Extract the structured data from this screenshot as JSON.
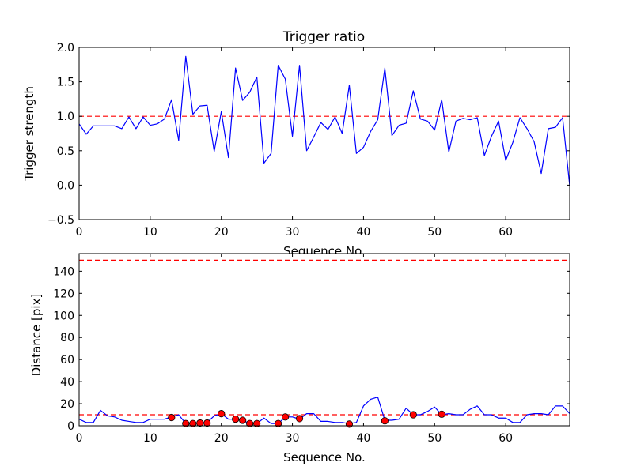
{
  "chart_data": [
    {
      "type": "line",
      "title": "Trigger ratio",
      "xlabel": "Sequence No.",
      "ylabel": "Trigger strength",
      "xlim": [
        0,
        69
      ],
      "ylim": [
        -0.5,
        2.0
      ],
      "xticks": [
        "0",
        "10",
        "20",
        "30",
        "40",
        "50",
        "60"
      ],
      "yticks": [
        "−0.5",
        "0.0",
        "0.5",
        "1.0",
        "1.5",
        "2.0"
      ],
      "grid": false,
      "threshold": 1.0,
      "colors": {
        "line": "#0000ff",
        "threshold": "#ff0000"
      },
      "series": [
        {
          "x": [
            0,
            1,
            2,
            3,
            4,
            5,
            6,
            7,
            8,
            9,
            10,
            11,
            12,
            13,
            14,
            15,
            16,
            17,
            18,
            19,
            20,
            21,
            22,
            23,
            24,
            25,
            26,
            27,
            28,
            29,
            30,
            31,
            32,
            33,
            34,
            35,
            36,
            37,
            38,
            39,
            40,
            41,
            42,
            43,
            44,
            45,
            46,
            47,
            48,
            49,
            50,
            51,
            52,
            53,
            54,
            55,
            56,
            57,
            58,
            59,
            60,
            61,
            62,
            63,
            64,
            65,
            66,
            67,
            68,
            69
          ],
          "values": [
            0.89,
            0.74,
            0.86,
            0.86,
            0.86,
            0.86,
            0.82,
            0.99,
            0.82,
            0.99,
            0.87,
            0.89,
            0.96,
            1.24,
            0.65,
            1.87,
            1.03,
            1.15,
            1.16,
            0.49,
            1.07,
            0.4,
            1.7,
            1.23,
            1.35,
            1.57,
            0.32,
            0.46,
            1.74,
            1.54,
            0.71,
            1.74,
            0.5,
            0.7,
            0.91,
            0.81,
            0.99,
            0.75,
            1.45,
            0.46,
            0.55,
            0.78,
            0.95,
            1.7,
            0.72,
            0.87,
            0.9,
            1.37,
            0.96,
            0.93,
            0.8,
            1.24,
            0.48,
            0.93,
            0.97,
            0.95,
            0.98,
            0.43,
            0.71,
            0.93,
            0.36,
            0.62,
            0.98,
            0.82,
            0.63,
            0.17,
            0.82,
            0.84,
            0.98,
            -0.01
          ]
        }
      ]
    },
    {
      "type": "line",
      "title": "",
      "xlabel": "Sequence No.",
      "ylabel": "Distance [pix]",
      "xlim": [
        0,
        69
      ],
      "ylim": [
        0,
        156
      ],
      "xticks": [
        "0",
        "10",
        "20",
        "30",
        "40",
        "50",
        "60"
      ],
      "yticks": [
        "0",
        "20",
        "40",
        "60",
        "80",
        "100",
        "120",
        "140"
      ],
      "grid": false,
      "thresholds": [
        10,
        150
      ],
      "colors": {
        "line": "#0000ff",
        "threshold": "#ff0000",
        "marker": "#ff0000"
      },
      "series": [
        {
          "x": [
            0,
            1,
            2,
            3,
            4,
            5,
            6,
            7,
            8,
            9,
            10,
            11,
            12,
            13,
            14,
            15,
            16,
            17,
            18,
            19,
            20,
            21,
            22,
            23,
            24,
            25,
            26,
            27,
            28,
            29,
            30,
            31,
            32,
            33,
            34,
            35,
            36,
            37,
            38,
            39,
            40,
            41,
            42,
            43,
            44,
            45,
            46,
            47,
            48,
            49,
            50,
            51,
            52,
            53,
            54,
            55,
            56,
            57,
            58,
            59,
            60,
            61,
            62,
            63,
            64,
            65,
            66,
            67,
            68,
            69
          ],
          "values": [
            6,
            3,
            3,
            14,
            9,
            8,
            5,
            4,
            3,
            3,
            6,
            6,
            6,
            8,
            10,
            2,
            2,
            3,
            3,
            9,
            11,
            6,
            6,
            5,
            2,
            2,
            7,
            2,
            2,
            8,
            8,
            6,
            11,
            11,
            4,
            4,
            3,
            3,
            2,
            3,
            18,
            24,
            26,
            5,
            5,
            6,
            16,
            10,
            10,
            13,
            17,
            10,
            11,
            10,
            10,
            15,
            18,
            10,
            10,
            7,
            7,
            3,
            3,
            10,
            11,
            11,
            10,
            18,
            18,
            11
          ]
        },
        {
          "marker": "circle",
          "x": [
            13,
            15,
            16,
            17,
            18,
            20,
            22,
            23,
            24,
            25,
            28,
            29,
            31,
            38,
            43,
            47,
            51
          ],
          "values": [
            7.5,
            2,
            2,
            2.5,
            2.5,
            11,
            6,
            5,
            2,
            2,
            2,
            8,
            6.5,
            1.5,
            4.5,
            10,
            10.5
          ]
        }
      ]
    }
  ]
}
